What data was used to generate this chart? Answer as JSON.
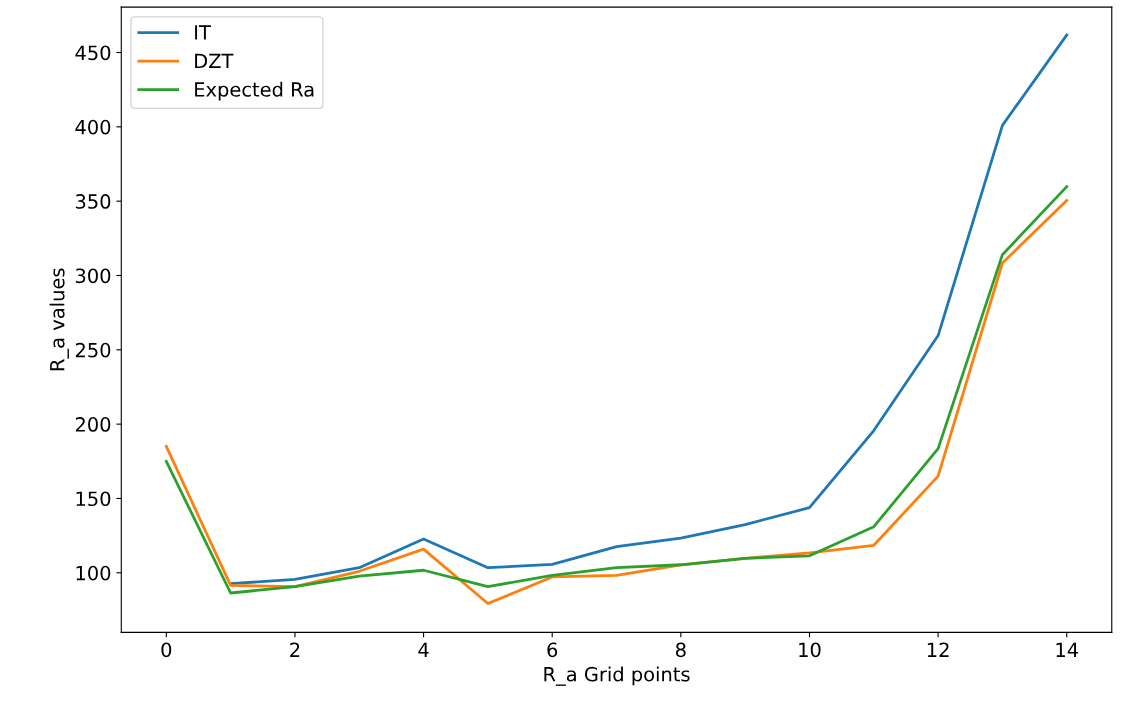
{
  "chart_data": {
    "type": "line",
    "xlabel": "R_a Grid points",
    "ylabel": "R_a values",
    "x": [
      0,
      1,
      2,
      3,
      4,
      5,
      6,
      7,
      8,
      9,
      10,
      11,
      12,
      13,
      14
    ],
    "series": [
      {
        "name": "IT",
        "color": "#1f77b4",
        "values": [
          null,
          92.7,
          95.5,
          103.4,
          122.7,
          103.4,
          105.7,
          117.6,
          123.3,
          132.4,
          143.8,
          195.7,
          259.6,
          401,
          461.8
        ]
      },
      {
        "name": "DZT",
        "color": "#ff7f0e",
        "values": [
          185,
          91.5,
          90.7,
          101,
          115.9,
          79.3,
          97.2,
          98.3,
          105.4,
          109.7,
          113.4,
          118.5,
          165,
          308.4,
          350.5
        ]
      },
      {
        "name": "Expected Ra",
        "color": "#2ca02c",
        "values": [
          175,
          86.4,
          90.7,
          97.8,
          101.7,
          90.7,
          98.3,
          103.4,
          105.4,
          109.7,
          111.4,
          131,
          183.5,
          314,
          359.8
        ]
      }
    ],
    "xlim": [
      -0.7,
      14.7
    ],
    "xticks": [
      0,
      2,
      4,
      6,
      8,
      10,
      12,
      14
    ],
    "ylim": [
      59.9,
      480.5
    ],
    "yticks": [
      100,
      150,
      200,
      250,
      300,
      350,
      400,
      450
    ],
    "grid": false,
    "legend": "upper left",
    "marker": "none",
    "line_style": "solid"
  }
}
